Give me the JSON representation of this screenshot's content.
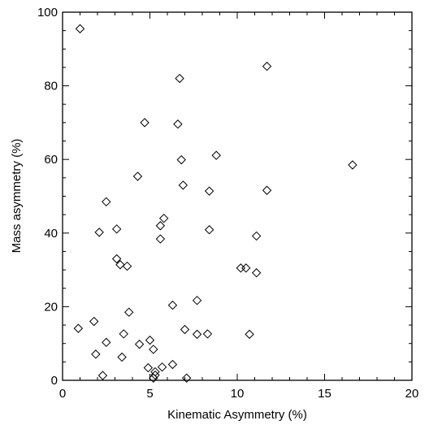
{
  "chart_data": {
    "type": "scatter",
    "title": "",
    "xlabel": "Kinematic Asymmetry (%)",
    "ylabel": "Mass asymmetry (%)",
    "xlim": [
      0,
      20
    ],
    "ylim": [
      0,
      100
    ],
    "xticks": [
      "0",
      "5",
      "10",
      "15",
      "20"
    ],
    "yticks": [
      "0",
      "20",
      "40",
      "60",
      "80",
      "100"
    ],
    "marker": "diamond-open",
    "marker_color": "#000000",
    "series": [
      {
        "points": [
          [
            1.0,
            95.5
          ],
          [
            11.7,
            85.3
          ],
          [
            6.7,
            82.0
          ],
          [
            4.7,
            70.0
          ],
          [
            6.6,
            69.6
          ],
          [
            8.8,
            61.1
          ],
          [
            6.8,
            59.9
          ],
          [
            16.6,
            58.5
          ],
          [
            4.3,
            55.4
          ],
          [
            6.9,
            53.0
          ],
          [
            11.7,
            51.6
          ],
          [
            8.4,
            51.4
          ],
          [
            2.5,
            48.5
          ],
          [
            5.8,
            44.0
          ],
          [
            5.6,
            42.0
          ],
          [
            8.4,
            40.9
          ],
          [
            3.1,
            41.1
          ],
          [
            2.1,
            40.2
          ],
          [
            11.1,
            39.2
          ],
          [
            5.6,
            38.4
          ],
          [
            3.1,
            33.0
          ],
          [
            3.3,
            31.4
          ],
          [
            3.7,
            31.0
          ],
          [
            10.2,
            30.5
          ],
          [
            10.5,
            30.5
          ],
          [
            11.1,
            29.2
          ],
          [
            7.7,
            21.7
          ],
          [
            6.3,
            20.4
          ],
          [
            3.8,
            18.5
          ],
          [
            1.8,
            16.0
          ],
          [
            0.9,
            14.1
          ],
          [
            7.0,
            13.8
          ],
          [
            3.5,
            12.6
          ],
          [
            8.3,
            12.6
          ],
          [
            7.7,
            12.5
          ],
          [
            10.7,
            12.5
          ],
          [
            5.0,
            10.9
          ],
          [
            2.5,
            10.3
          ],
          [
            4.4,
            9.8
          ],
          [
            5.2,
            8.4
          ],
          [
            1.9,
            7.1
          ],
          [
            3.4,
            6.3
          ],
          [
            6.3,
            4.3
          ],
          [
            5.7,
            3.6
          ],
          [
            4.9,
            3.4
          ],
          [
            5.3,
            2.3
          ],
          [
            5.3,
            1.4
          ],
          [
            2.3,
            1.3
          ],
          [
            5.2,
            0.6
          ],
          [
            7.1,
            0.6
          ]
        ]
      }
    ]
  }
}
